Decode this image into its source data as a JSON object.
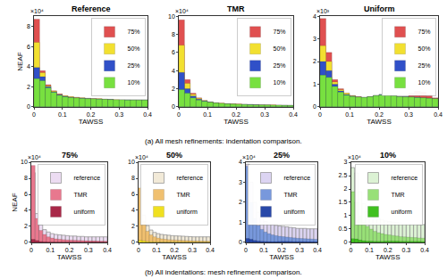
{
  "captions": [
    "(a) All mesh refinements: indentation comparison.",
    "(b) All indentations: mesh refinement comparison."
  ],
  "chart_data": [
    {
      "type": "histogram",
      "title": "Reference",
      "x_label": "TAWSS",
      "y_label": "NEAF",
      "annotation": "×10⁴",
      "bins": [
        0,
        0.02,
        0.04,
        0.06,
        0.08,
        0.1,
        0.12,
        0.14,
        0.16,
        0.18,
        0.2,
        0.22,
        0.24,
        0.26,
        0.28,
        0.3,
        0.32,
        0.34,
        0.36,
        0.38,
        0.4
      ],
      "xlim": [
        0,
        0.4
      ],
      "xticks": [
        0,
        0.1,
        0.2,
        0.3,
        0.4
      ],
      "ylim": [
        0,
        9
      ],
      "yticks": [
        0,
        2,
        4,
        6,
        8
      ],
      "legend": "upper right",
      "series": [
        {
          "name": "75%",
          "color": "#e05050",
          "values": [
            8.7,
            3.6,
            2.2,
            1.6,
            1.3,
            1.1,
            1.0,
            0.95,
            0.9,
            0.85,
            0.8,
            0.8,
            0.75,
            0.75,
            0.7,
            0.7,
            0.7,
            0.7,
            0.7,
            0.7
          ]
        },
        {
          "name": "50%",
          "color": "#f2e030",
          "values": [
            6.4,
            3.4,
            2.1,
            1.55,
            1.25,
            1.1,
            1.0,
            0.95,
            0.9,
            0.85,
            0.82,
            0.8,
            0.78,
            0.75,
            0.72,
            0.7,
            0.7,
            0.7,
            0.7,
            0.7
          ]
        },
        {
          "name": "25%",
          "color": "#3050c8",
          "values": [
            3.9,
            3.0,
            2.0,
            1.5,
            1.2,
            1.05,
            0.95,
            0.9,
            0.85,
            0.82,
            0.8,
            0.78,
            0.75,
            0.73,
            0.7,
            0.7,
            0.7,
            0.68,
            0.68,
            0.68
          ]
        },
        {
          "name": "10%",
          "color": "#78e040",
          "values": [
            2.8,
            2.6,
            1.9,
            1.45,
            1.15,
            1.0,
            0.92,
            0.88,
            0.84,
            0.8,
            0.78,
            0.76,
            0.74,
            0.72,
            0.7,
            0.7,
            0.68,
            0.68,
            0.67,
            0.67
          ]
        }
      ]
    },
    {
      "type": "histogram",
      "title": "TMR",
      "x_label": "TAWSS",
      "annotation": "×10⁴",
      "bins": [
        0,
        0.02,
        0.04,
        0.06,
        0.08,
        0.1,
        0.12,
        0.14,
        0.16,
        0.18,
        0.2,
        0.22,
        0.24,
        0.26,
        0.28,
        0.3,
        0.32,
        0.34,
        0.36,
        0.38,
        0.4
      ],
      "xlim": [
        0,
        0.4
      ],
      "xticks": [
        0,
        0.1,
        0.2,
        0.3,
        0.4
      ],
      "ylim": [
        0,
        10
      ],
      "yticks": [
        0,
        2,
        4,
        6,
        8,
        10
      ],
      "legend": "upper right",
      "series": [
        {
          "name": "75%",
          "color": "#e05050",
          "values": [
            9.6,
            3.0,
            1.5,
            1.0,
            0.7,
            0.55,
            0.45,
            0.4,
            0.35,
            0.32,
            0.3,
            0.28,
            0.26,
            0.24,
            0.22,
            0.2,
            0.2,
            0.18,
            0.17,
            0.16
          ]
        },
        {
          "name": "50%",
          "color": "#f2e030",
          "values": [
            6.8,
            2.6,
            1.4,
            0.95,
            0.7,
            0.55,
            0.45,
            0.4,
            0.35,
            0.32,
            0.3,
            0.28,
            0.26,
            0.24,
            0.22,
            0.2,
            0.2,
            0.18,
            0.17,
            0.16
          ]
        },
        {
          "name": "25%",
          "color": "#3050c8",
          "values": [
            3.8,
            2.0,
            1.2,
            0.85,
            0.65,
            0.52,
            0.44,
            0.38,
            0.34,
            0.31,
            0.29,
            0.27,
            0.25,
            0.23,
            0.21,
            0.2,
            0.19,
            0.18,
            0.17,
            0.16
          ]
        },
        {
          "name": "10%",
          "color": "#78e040",
          "values": [
            1.9,
            1.5,
            1.0,
            0.75,
            0.6,
            0.5,
            0.42,
            0.37,
            0.33,
            0.3,
            0.28,
            0.26,
            0.24,
            0.22,
            0.21,
            0.2,
            0.19,
            0.18,
            0.17,
            0.16
          ]
        }
      ]
    },
    {
      "type": "histogram",
      "title": "Uniform",
      "x_label": "TAWSS",
      "annotation": "×10³",
      "bins": [
        0,
        0.02,
        0.04,
        0.06,
        0.08,
        0.1,
        0.12,
        0.14,
        0.16,
        0.18,
        0.2,
        0.22,
        0.24,
        0.26,
        0.28,
        0.3,
        0.32,
        0.34,
        0.36,
        0.38,
        0.4
      ],
      "xlim": [
        0,
        0.4
      ],
      "xticks": [
        0,
        0.1,
        0.2,
        0.3,
        0.4
      ],
      "ylim": [
        0,
        4
      ],
      "yticks": [
        0,
        1,
        2,
        3,
        4
      ],
      "legend": "upper right",
      "series": [
        {
          "name": "75%",
          "color": "#e05050",
          "values": [
            3.9,
            2.4,
            1.2,
            0.8,
            0.6,
            0.5,
            0.45,
            0.4,
            0.45,
            0.5,
            0.55,
            0.55,
            0.5,
            0.45,
            0.45,
            0.6,
            0.7,
            0.65,
            0.5,
            0.4
          ]
        },
        {
          "name": "50%",
          "color": "#f2e030",
          "values": [
            2.7,
            2.0,
            1.1,
            0.75,
            0.6,
            0.5,
            0.45,
            0.42,
            0.45,
            0.5,
            0.55,
            0.55,
            0.5,
            0.45,
            0.45,
            0.45,
            0.42,
            0.4,
            0.38,
            0.36
          ]
        },
        {
          "name": "25%",
          "color": "#3050c8",
          "values": [
            2.0,
            1.6,
            1.0,
            0.7,
            0.55,
            0.48,
            0.44,
            0.42,
            0.45,
            0.5,
            0.55,
            0.55,
            0.5,
            0.45,
            0.45,
            0.44,
            0.42,
            0.4,
            0.38,
            0.36
          ]
        },
        {
          "name": "10%",
          "color": "#78e040",
          "values": [
            1.4,
            1.3,
            0.9,
            0.65,
            0.52,
            0.46,
            0.43,
            0.42,
            0.45,
            0.5,
            0.53,
            0.53,
            0.5,
            0.45,
            0.44,
            0.43,
            0.41,
            0.4,
            0.38,
            0.36
          ]
        }
      ]
    },
    {
      "type": "histogram",
      "title": "75%",
      "x_label": "TAWSS",
      "y_label": "NEAF",
      "annotation": "×10⁴",
      "bins": [
        0,
        0.02,
        0.04,
        0.06,
        0.08,
        0.1,
        0.12,
        0.14,
        0.16,
        0.18,
        0.2,
        0.22,
        0.24,
        0.26,
        0.28,
        0.3,
        0.32,
        0.34,
        0.36,
        0.38,
        0.4
      ],
      "xlim": [
        0,
        0.4
      ],
      "xticks": [
        0,
        0.1,
        0.2,
        0.3,
        0.4
      ],
      "ylim": [
        0,
        10
      ],
      "yticks": [
        0,
        2,
        4,
        6,
        8,
        10
      ],
      "legend": "upper right",
      "series": [
        {
          "name": "reference",
          "color": "#ecdcf2",
          "marker": "outline",
          "values": [
            8.7,
            3.6,
            2.2,
            1.6,
            1.3,
            1.1,
            1.0,
            0.95,
            0.9,
            0.85,
            0.8,
            0.8,
            0.75,
            0.75,
            0.7,
            0.7,
            0.7,
            0.7,
            0.7,
            0.7
          ]
        },
        {
          "name": "TMR",
          "color": "#e8788e",
          "values": [
            9.6,
            3.0,
            1.5,
            1.0,
            0.7,
            0.55,
            0.45,
            0.4,
            0.35,
            0.32,
            0.3,
            0.28,
            0.26,
            0.24,
            0.22,
            0.2,
            0.2,
            0.18,
            0.17,
            0.16
          ]
        },
        {
          "name": "uniform",
          "color": "#a82848",
          "values": [
            0.39,
            0.24,
            0.12,
            0.08,
            0.06,
            0.05,
            0.045,
            0.04,
            0.045,
            0.05,
            0.055,
            0.055,
            0.05,
            0.045,
            0.045,
            0.06,
            0.07,
            0.065,
            0.05,
            0.04
          ]
        }
      ]
    },
    {
      "type": "histogram",
      "title": "50%",
      "x_label": "TAWSS",
      "annotation": "×10⁴",
      "bins": [
        0,
        0.02,
        0.04,
        0.06,
        0.08,
        0.1,
        0.12,
        0.14,
        0.16,
        0.18,
        0.2,
        0.22,
        0.24,
        0.26,
        0.28,
        0.3,
        0.32,
        0.34,
        0.36,
        0.38,
        0.4
      ],
      "xlim": [
        0,
        0.4
      ],
      "xticks": [
        0,
        0.1,
        0.2,
        0.3,
        0.4
      ],
      "ylim": [
        0,
        10
      ],
      "yticks": [
        0,
        2,
        4,
        6,
        8,
        10
      ],
      "legend": "upper right",
      "series": [
        {
          "name": "reference",
          "color": "#f2ead8",
          "marker": "outline",
          "values": [
            6.4,
            3.4,
            2.1,
            1.55,
            1.25,
            1.1,
            1.0,
            0.95,
            0.9,
            0.85,
            0.82,
            0.8,
            0.78,
            0.75,
            0.72,
            0.7,
            0.7,
            0.7,
            0.7,
            0.7
          ]
        },
        {
          "name": "TMR",
          "color": "#f0c070",
          "values": [
            6.8,
            2.6,
            1.4,
            0.95,
            0.7,
            0.55,
            0.45,
            0.4,
            0.35,
            0.32,
            0.3,
            0.28,
            0.26,
            0.24,
            0.22,
            0.2,
            0.2,
            0.18,
            0.17,
            0.16
          ]
        },
        {
          "name": "uniform",
          "color": "#f0e020",
          "values": [
            0.27,
            0.2,
            0.11,
            0.075,
            0.06,
            0.05,
            0.045,
            0.042,
            0.045,
            0.05,
            0.055,
            0.055,
            0.05,
            0.045,
            0.045,
            0.045,
            0.042,
            0.04,
            0.038,
            0.036
          ]
        }
      ]
    },
    {
      "type": "histogram",
      "title": "25%",
      "x_label": "TAWSS",
      "annotation": "×10⁴",
      "bins": [
        0,
        0.02,
        0.04,
        0.06,
        0.08,
        0.1,
        0.12,
        0.14,
        0.16,
        0.18,
        0.2,
        0.22,
        0.24,
        0.26,
        0.28,
        0.3,
        0.32,
        0.34,
        0.36,
        0.38,
        0.4
      ],
      "xlim": [
        0,
        0.4
      ],
      "xticks": [
        0,
        0.1,
        0.2,
        0.3,
        0.4
      ],
      "ylim": [
        0,
        4
      ],
      "yticks": [
        0,
        1,
        2,
        3,
        4
      ],
      "legend": "upper right",
      "series": [
        {
          "name": "reference",
          "color": "#dcd4f2",
          "marker": "outline",
          "values": [
            3.9,
            3.0,
            2.0,
            1.5,
            1.2,
            1.05,
            0.95,
            0.9,
            0.85,
            0.82,
            0.8,
            0.78,
            0.75,
            0.73,
            0.7,
            0.7,
            0.7,
            0.68,
            0.68,
            0.68
          ]
        },
        {
          "name": "TMR",
          "color": "#7898dc",
          "values": [
            3.8,
            2.0,
            1.2,
            0.85,
            0.65,
            0.52,
            0.44,
            0.38,
            0.34,
            0.31,
            0.29,
            0.27,
            0.25,
            0.23,
            0.21,
            0.2,
            0.19,
            0.18,
            0.17,
            0.16
          ]
        },
        {
          "name": "uniform",
          "color": "#2848a8",
          "values": [
            0.2,
            0.16,
            0.1,
            0.07,
            0.055,
            0.048,
            0.044,
            0.042,
            0.045,
            0.05,
            0.055,
            0.055,
            0.05,
            0.045,
            0.045,
            0.044,
            0.042,
            0.04,
            0.038,
            0.036
          ]
        }
      ]
    },
    {
      "type": "histogram",
      "title": "10%",
      "x_label": "TAWSS",
      "annotation": "×10⁴",
      "bins": [
        0,
        0.02,
        0.04,
        0.06,
        0.08,
        0.1,
        0.12,
        0.14,
        0.16,
        0.18,
        0.2,
        0.22,
        0.24,
        0.26,
        0.28,
        0.3,
        0.32,
        0.34,
        0.36,
        0.38,
        0.4
      ],
      "xlim": [
        0,
        0.4
      ],
      "xticks": [
        0,
        0.1,
        0.2,
        0.3,
        0.4
      ],
      "ylim": [
        0,
        3
      ],
      "yticks": [
        0,
        0.5,
        1,
        1.5,
        2,
        2.5,
        3
      ],
      "legend": "upper right",
      "series": [
        {
          "name": "reference",
          "color": "#dcf2d4",
          "marker": "outline",
          "values": [
            2.8,
            2.6,
            1.9,
            1.45,
            1.15,
            1.0,
            0.92,
            0.88,
            0.84,
            0.8,
            0.78,
            0.76,
            0.74,
            0.72,
            0.7,
            0.7,
            0.68,
            0.68,
            0.67,
            0.67
          ]
        },
        {
          "name": "TMR",
          "color": "#98e078",
          "values": [
            1.9,
            1.5,
            1.0,
            0.75,
            0.6,
            0.5,
            0.42,
            0.37,
            0.33,
            0.3,
            0.28,
            0.26,
            0.24,
            0.22,
            0.21,
            0.2,
            0.19,
            0.18,
            0.17,
            0.16
          ]
        },
        {
          "name": "uniform",
          "color": "#40c020",
          "values": [
            0.14,
            0.13,
            0.09,
            0.065,
            0.052,
            0.046,
            0.043,
            0.042,
            0.045,
            0.05,
            0.053,
            0.053,
            0.05,
            0.045,
            0.044,
            0.043,
            0.041,
            0.04,
            0.038,
            0.036
          ]
        }
      ]
    }
  ]
}
